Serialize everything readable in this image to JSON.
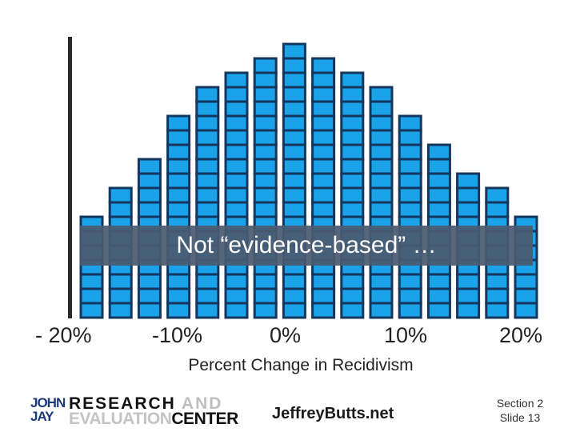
{
  "chart_data": {
    "type": "bar",
    "x_ticks": [
      "- 20%",
      "-10%",
      "0%",
      "10%",
      "20%"
    ],
    "xlabel": "Percent Change in Recidivism",
    "values": [
      7,
      9,
      11,
      14,
      16,
      17,
      18,
      19,
      18,
      17,
      16,
      14,
      12,
      10,
      9,
      7
    ],
    "ylim": [
      0,
      19
    ],
    "ylabel": "",
    "title": "",
    "bar_color": "#1aa3e8",
    "bar_border_color": "#15365f"
  },
  "banner": {
    "text": "Not “evidence-based” …",
    "color": "#4a5a70"
  },
  "footer": {
    "logo_john": "JOHN",
    "logo_jay": "JAY",
    "logo_research": "RESEARCH",
    "logo_and": "AND",
    "logo_evaluation": "EVALUATION",
    "logo_center": "CENTER",
    "website": "JeffreyButts.net",
    "section": "Section 2",
    "slide": "Slide 13"
  }
}
